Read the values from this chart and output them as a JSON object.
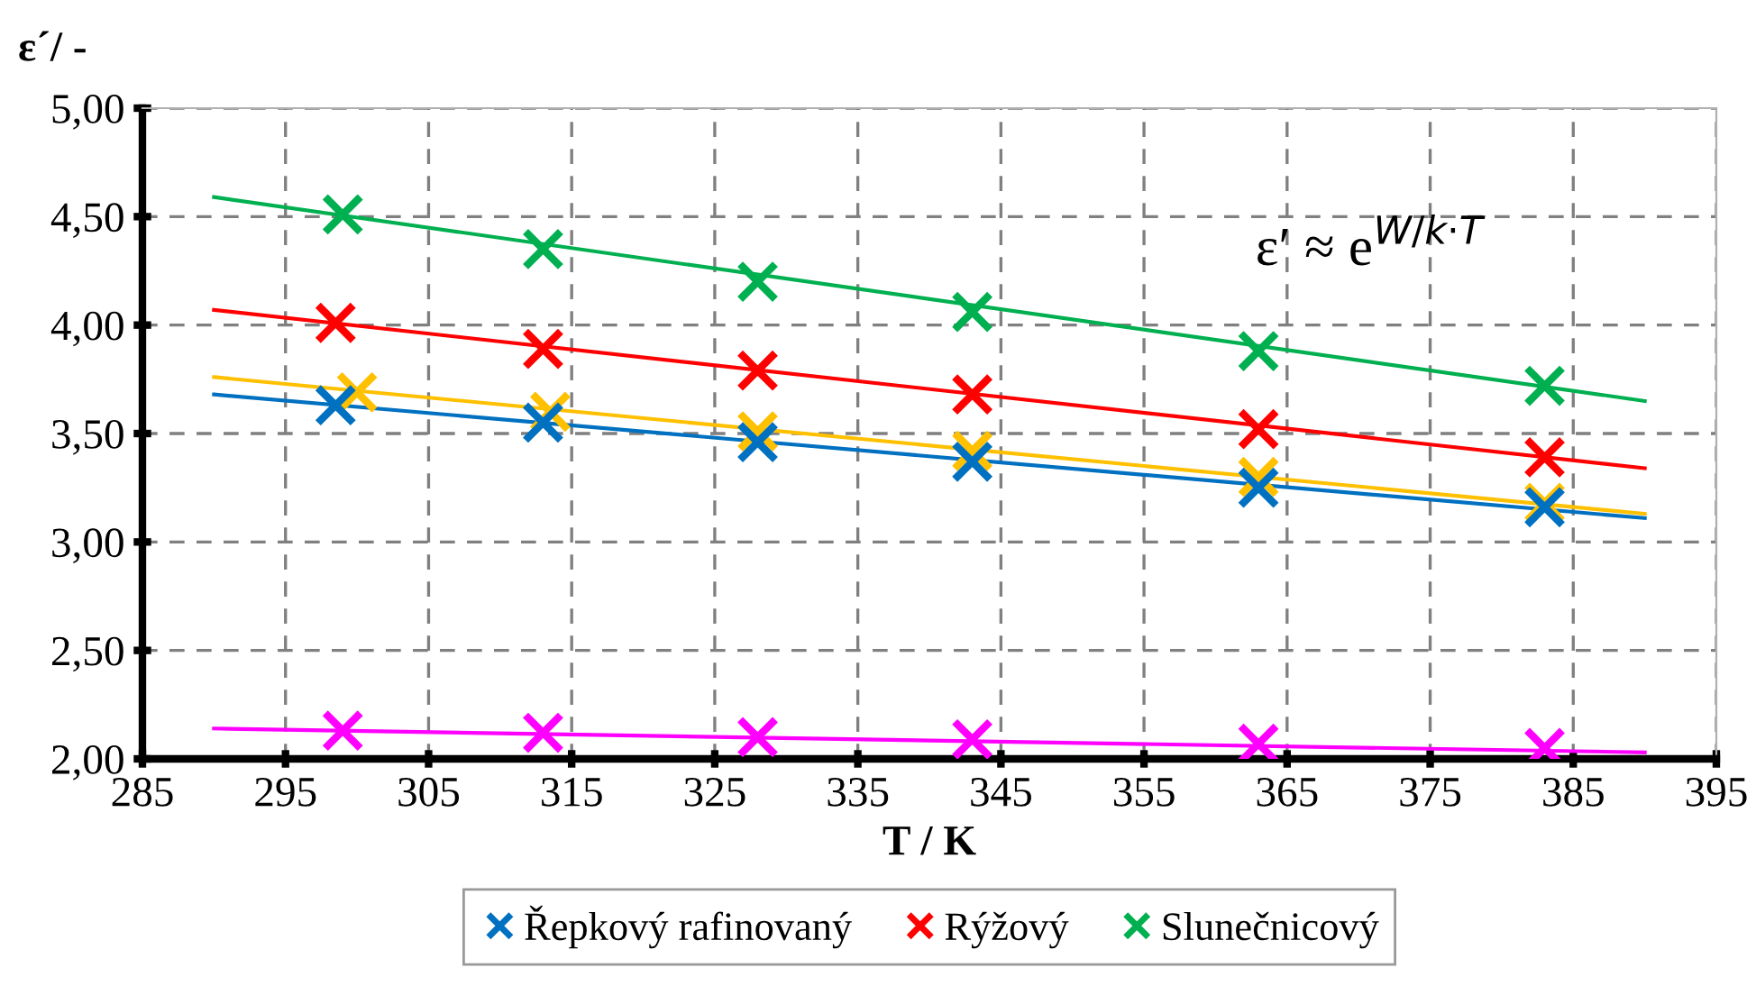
{
  "chart_data": {
    "type": "scatter",
    "xlabel": "T / K",
    "ylabel": "ε´/ -",
    "xlim": [
      285,
      395
    ],
    "xticks": [
      285,
      295,
      305,
      315,
      325,
      335,
      345,
      355,
      365,
      375,
      385,
      395
    ],
    "ylim": [
      2.0,
      5.0
    ],
    "yticks": [
      {
        "value": 2.0,
        "label": "2,00"
      },
      {
        "value": 2.5,
        "label": "2,50"
      },
      {
        "value": 3.0,
        "label": "3,00"
      },
      {
        "value": 3.5,
        "label": "3,50"
      },
      {
        "value": 4.0,
        "label": "4,00"
      },
      {
        "value": 4.5,
        "label": "4,50"
      },
      {
        "value": 5.0,
        "label": "5,00"
      }
    ],
    "grid": true,
    "legend": "bottom",
    "marker": "cross",
    "annotations": [
      "ε′ ≈ e$^{W/k·T}$"
    ],
    "series": [
      {
        "color": "#ffc000",
        "x": [
          300,
          313.5,
          328,
          343,
          363,
          383
        ],
        "values": [
          3.69,
          3.6,
          3.51,
          3.42,
          3.3,
          3.18
        ]
      },
      {
        "name": "Řepkový rafinovaný",
        "color": "#0070c0",
        "x": [
          298.5,
          313,
          328,
          343,
          363,
          383
        ],
        "values": [
          3.63,
          3.55,
          3.46,
          3.37,
          3.25,
          3.16
        ]
      },
      {
        "name": "Rýžový",
        "color": "#ff0000",
        "x": [
          298.5,
          313,
          328,
          343,
          363,
          383
        ],
        "values": [
          4.01,
          3.89,
          3.79,
          3.68,
          3.52,
          3.39
        ]
      },
      {
        "name": "Slunečnicový",
        "color": "#00b050",
        "x": [
          299,
          313,
          328,
          343,
          363,
          383
        ],
        "values": [
          4.51,
          4.35,
          4.2,
          4.06,
          3.88,
          3.72
        ]
      },
      {
        "color": "#ff00ff",
        "x": [
          299,
          313,
          328,
          343,
          363,
          383
        ],
        "values": [
          2.13,
          2.12,
          2.1,
          2.09,
          2.07,
          2.05
        ]
      },
      {
        "type": "line",
        "marker": "none",
        "color": "#ffc000",
        "x": [
          290,
          390
        ],
        "values": [
          3.76,
          3.13
        ]
      },
      {
        "type": "line",
        "marker": "none",
        "color": "#0070c0",
        "x": [
          290,
          390
        ],
        "values": [
          3.68,
          3.11
        ]
      },
      {
        "type": "line",
        "marker": "none",
        "color": "#ff0000",
        "x": [
          290,
          390
        ],
        "values": [
          4.07,
          3.34
        ]
      },
      {
        "type": "line",
        "marker": "none",
        "color": "#00b050",
        "x": [
          290,
          390
        ],
        "values": [
          4.59,
          3.65
        ]
      },
      {
        "type": "line",
        "marker": "none",
        "color": "#ff00ff",
        "x": [
          290,
          390
        ],
        "values": [
          2.14,
          2.03
        ]
      }
    ]
  }
}
